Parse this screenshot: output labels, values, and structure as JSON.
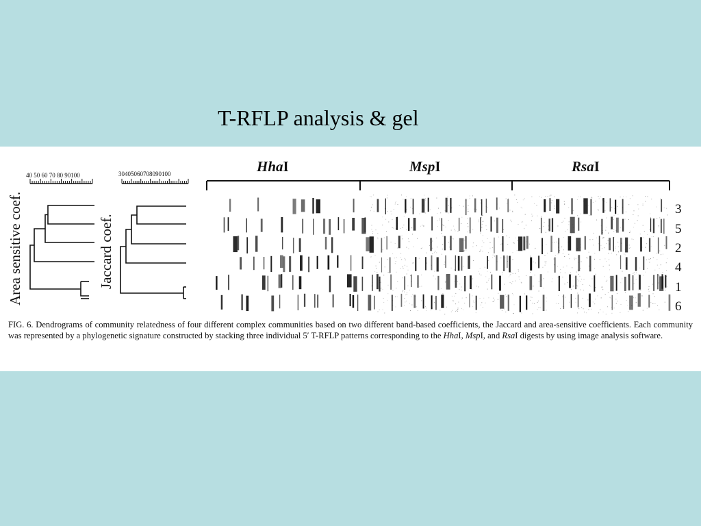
{
  "slide": {
    "title": "T-RFLP analysis & gel"
  },
  "figure": {
    "dendrogram_left": {
      "axis_title": "Area sensitive coef.",
      "scale_labels": "40 50 60 70 80 90100"
    },
    "dendrogram_middle": {
      "axis_title": "Jaccard coef.",
      "scale_labels": "30405060708090100"
    },
    "enzymes": [
      {
        "italic": "Hha",
        "plain": "I"
      },
      {
        "italic": "Msp",
        "plain": "I"
      },
      {
        "italic": "Rsa",
        "plain": "I"
      }
    ],
    "community_labels": [
      "3",
      "5",
      "2",
      "4",
      "1",
      "6"
    ]
  },
  "caption": {
    "part1": "FIG. 6. Dendrograms of community relatedness of four different complex communities based on two different band-based coefficients, the Jaccard and area-sensitive coefficients. Each community was represented by a phylogenetic signature constructed by stacking three individual 5′ T-RFLP patterns corresponding to the ",
    "hha": "Hha",
    "part2": "I, ",
    "msp": "Msp",
    "part3": "I, and ",
    "rsa": "Rsa",
    "part4": "I digests by using image analysis software."
  },
  "colors": {
    "background": "#b7dee1",
    "panel": "#ffffff",
    "ink": "#111111"
  }
}
